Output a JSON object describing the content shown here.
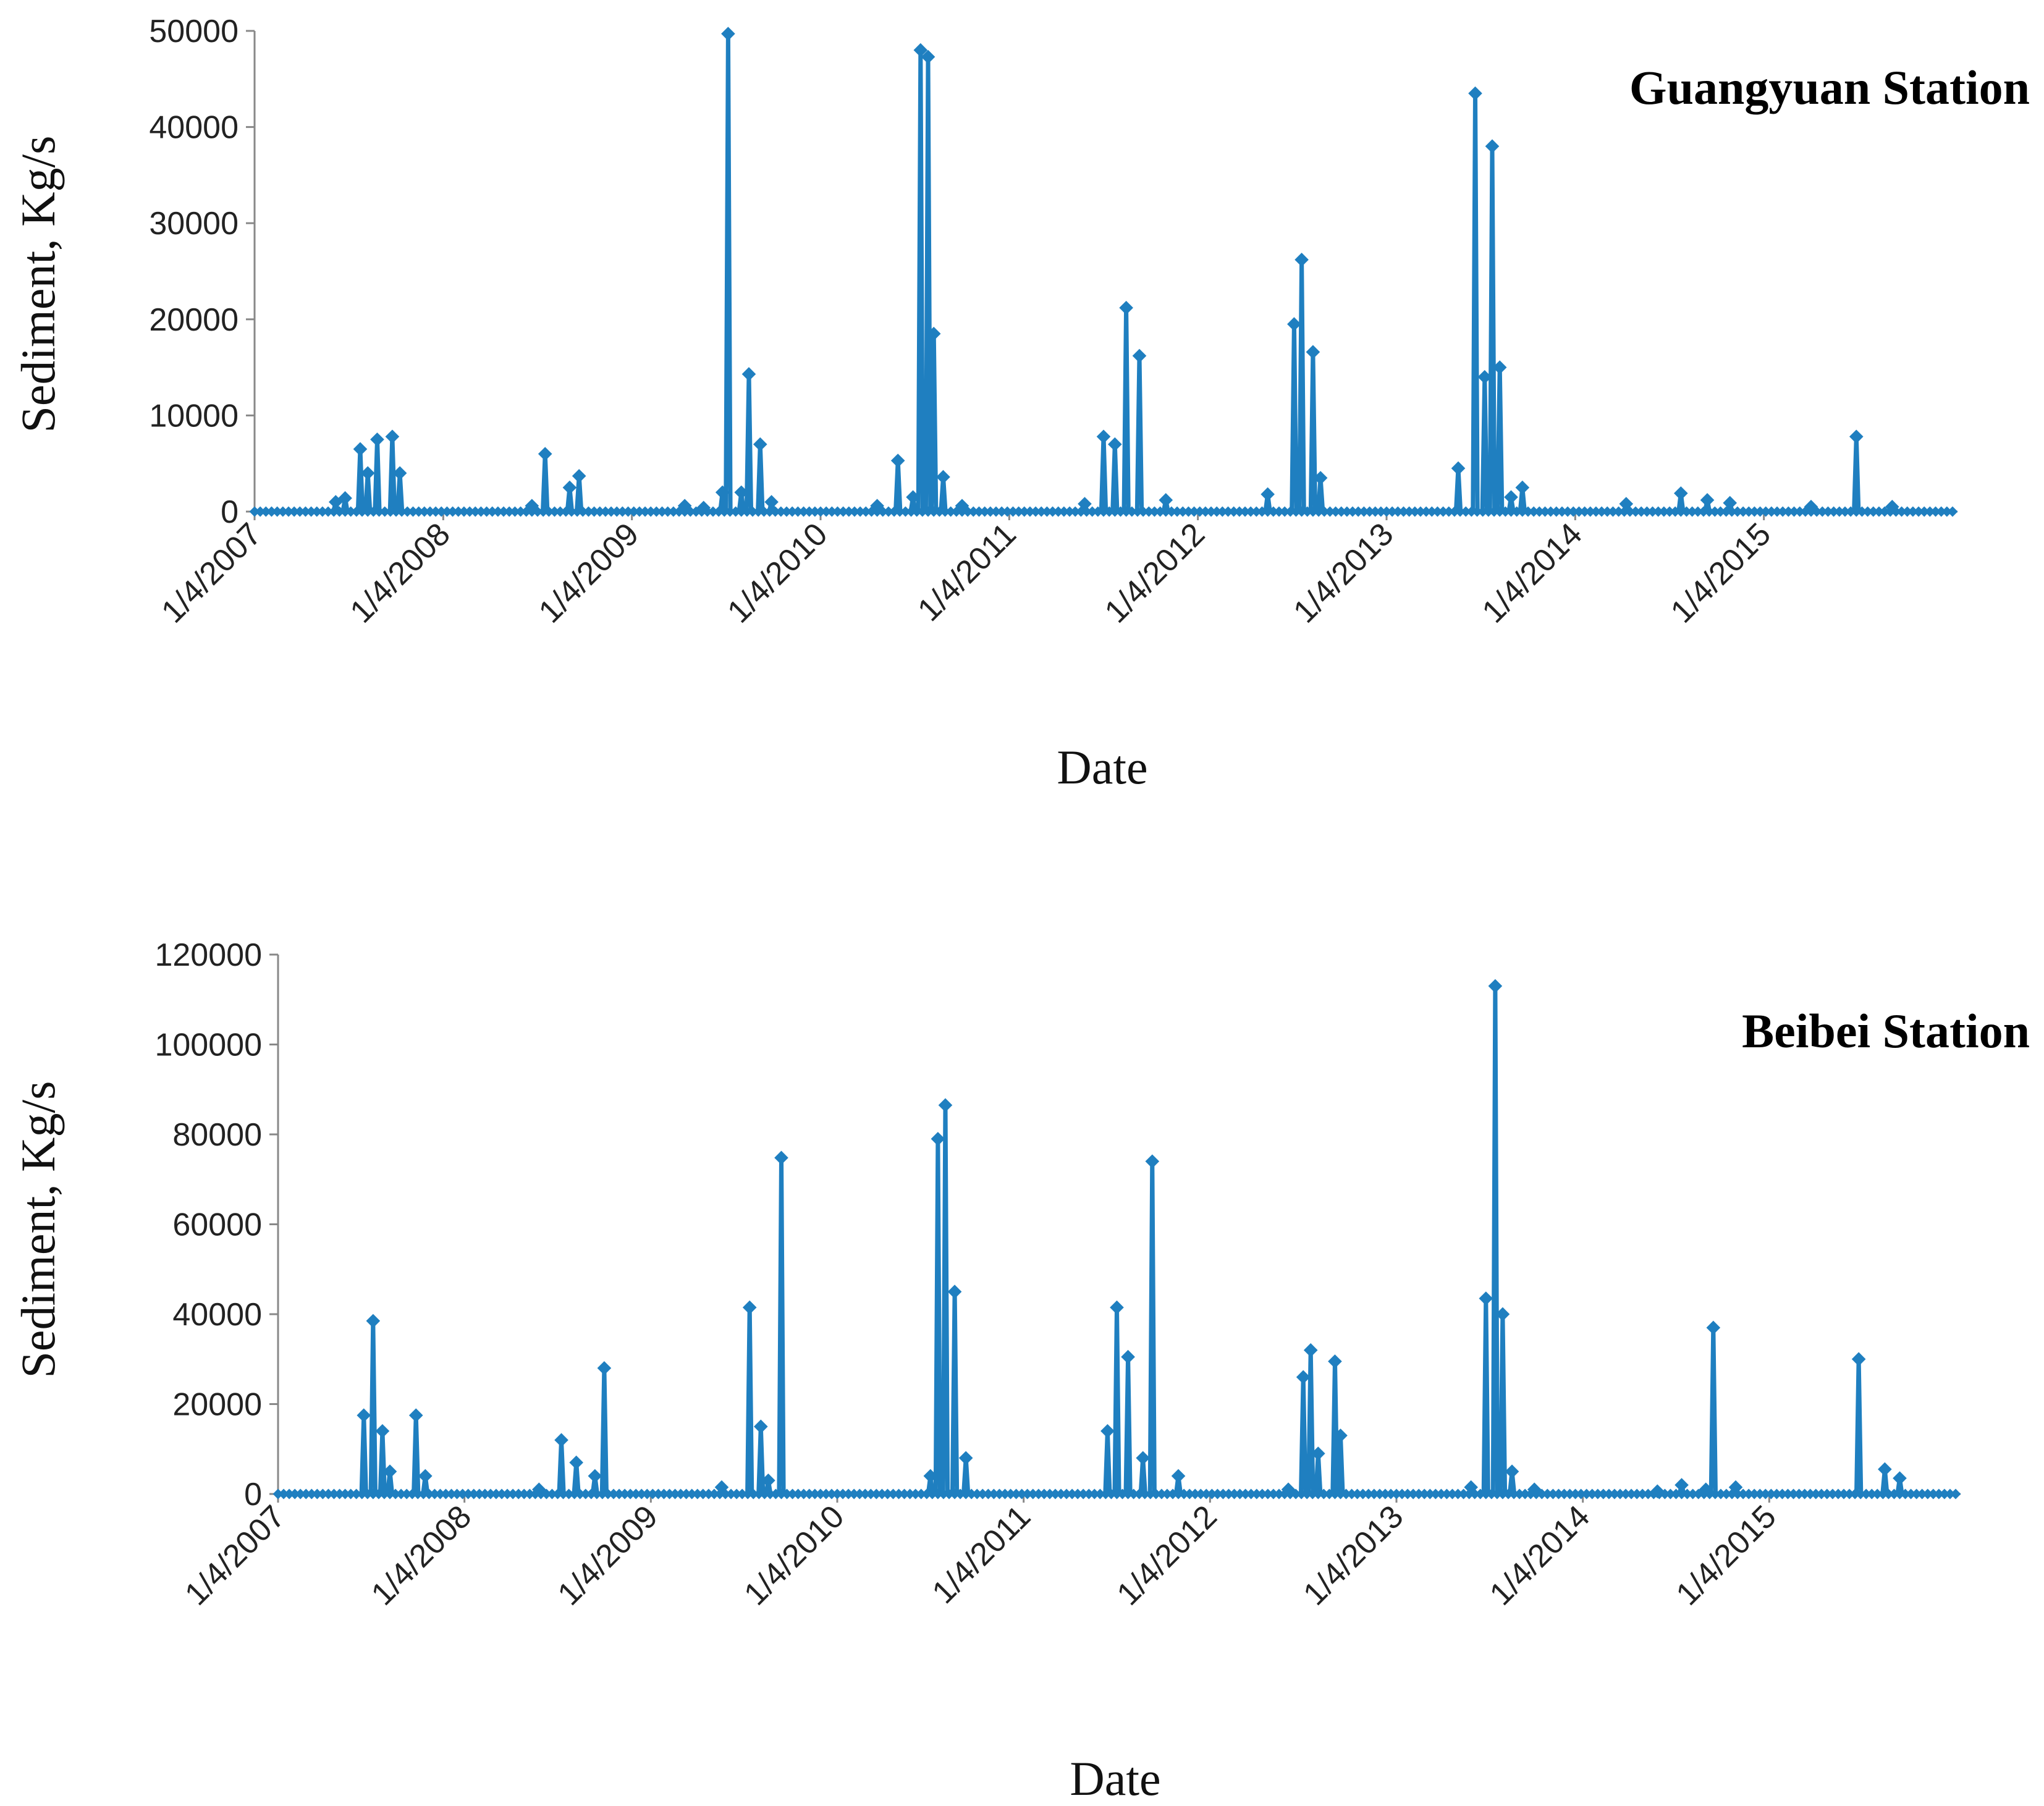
{
  "chart_data": [
    {
      "type": "line",
      "title": "Guangyuan Station",
      "xlabel": "Date",
      "ylabel": "Sediment, Kg/s",
      "ylim": [
        0,
        50000
      ],
      "yticks": [
        "0",
        "10000",
        "20000",
        "30000",
        "40000",
        "50000"
      ],
      "xlim": [
        2007.0,
        2016.0
      ],
      "xticks": [
        {
          "label": "1/4/2007",
          "value": 2007.0
        },
        {
          "label": "1/4/2008",
          "value": 2008.0
        },
        {
          "label": "1/4/2009",
          "value": 2009.0
        },
        {
          "label": "1/4/2010",
          "value": 2010.0
        },
        {
          "label": "1/4/2011",
          "value": 2011.0
        },
        {
          "label": "1/4/2012",
          "value": 2012.0
        },
        {
          "label": "1/4/2013",
          "value": 2013.0
        },
        {
          "label": "1/4/2014",
          "value": 2014.0
        },
        {
          "label": "1/4/2015",
          "value": 2015.0
        }
      ],
      "color": "#1f7fc0",
      "peaks": [
        {
          "x": 2007.43,
          "y": 1000
        },
        {
          "x": 2007.48,
          "y": 1400
        },
        {
          "x": 2007.56,
          "y": 6500
        },
        {
          "x": 2007.6,
          "y": 4000
        },
        {
          "x": 2007.65,
          "y": 7500
        },
        {
          "x": 2007.73,
          "y": 7800
        },
        {
          "x": 2007.77,
          "y": 4000
        },
        {
          "x": 2008.47,
          "y": 600
        },
        {
          "x": 2008.54,
          "y": 6000
        },
        {
          "x": 2008.67,
          "y": 2500
        },
        {
          "x": 2008.72,
          "y": 3700
        },
        {
          "x": 2009.28,
          "y": 600
        },
        {
          "x": 2009.38,
          "y": 400
        },
        {
          "x": 2009.48,
          "y": 2000
        },
        {
          "x": 2009.51,
          "y": 49700
        },
        {
          "x": 2009.58,
          "y": 2000
        },
        {
          "x": 2009.62,
          "y": 14300
        },
        {
          "x": 2009.68,
          "y": 7000
        },
        {
          "x": 2009.74,
          "y": 1000
        },
        {
          "x": 2010.3,
          "y": 600
        },
        {
          "x": 2010.41,
          "y": 5300
        },
        {
          "x": 2010.49,
          "y": 1500
        },
        {
          "x": 2010.53,
          "y": 48000
        },
        {
          "x": 2010.57,
          "y": 47300
        },
        {
          "x": 2010.6,
          "y": 18500
        },
        {
          "x": 2010.65,
          "y": 3600
        },
        {
          "x": 2010.75,
          "y": 600
        },
        {
          "x": 2011.4,
          "y": 800
        },
        {
          "x": 2011.5,
          "y": 7800
        },
        {
          "x": 2011.56,
          "y": 7000
        },
        {
          "x": 2011.62,
          "y": 21200
        },
        {
          "x": 2011.69,
          "y": 16200
        },
        {
          "x": 2011.83,
          "y": 1200
        },
        {
          "x": 2012.37,
          "y": 1800
        },
        {
          "x": 2012.51,
          "y": 19500
        },
        {
          "x": 2012.55,
          "y": 26200
        },
        {
          "x": 2012.61,
          "y": 16600
        },
        {
          "x": 2012.65,
          "y": 3500
        },
        {
          "x": 2013.38,
          "y": 4500
        },
        {
          "x": 2013.47,
          "y": 43500
        },
        {
          "x": 2013.52,
          "y": 14000
        },
        {
          "x": 2013.56,
          "y": 38000
        },
        {
          "x": 2013.6,
          "y": 15000
        },
        {
          "x": 2013.66,
          "y": 1500
        },
        {
          "x": 2013.72,
          "y": 2500
        },
        {
          "x": 2014.27,
          "y": 800
        },
        {
          "x": 2014.56,
          "y": 1900
        },
        {
          "x": 2014.7,
          "y": 1200
        },
        {
          "x": 2014.82,
          "y": 900
        },
        {
          "x": 2015.25,
          "y": 500
        },
        {
          "x": 2015.49,
          "y": 7800
        },
        {
          "x": 2015.68,
          "y": 500
        }
      ]
    },
    {
      "type": "line",
      "title": "Beibei Station",
      "xlabel": "Date",
      "ylabel": "Sediment, Kg/s",
      "ylim": [
        0,
        120000
      ],
      "yticks": [
        "0",
        "20000",
        "40000",
        "60000",
        "80000",
        "100000",
        "120000"
      ],
      "xlim": [
        2007.0,
        2016.0
      ],
      "xticks": [
        {
          "label": "1/4/2007",
          "value": 2007.0
        },
        {
          "label": "1/4/2008",
          "value": 2008.0
        },
        {
          "label": "1/4/2009",
          "value": 2009.0
        },
        {
          "label": "1/4/2010",
          "value": 2010.0
        },
        {
          "label": "1/4/2011",
          "value": 2011.0
        },
        {
          "label": "1/4/2012",
          "value": 2012.0
        },
        {
          "label": "1/4/2013",
          "value": 2013.0
        },
        {
          "label": "1/4/2014",
          "value": 2014.0
        },
        {
          "label": "1/4/2015",
          "value": 2015.0
        }
      ],
      "color": "#1f7fc0",
      "peaks": [
        {
          "x": 2007.46,
          "y": 17500
        },
        {
          "x": 2007.51,
          "y": 38500
        },
        {
          "x": 2007.56,
          "y": 14000
        },
        {
          "x": 2007.6,
          "y": 5000
        },
        {
          "x": 2007.74,
          "y": 17500
        },
        {
          "x": 2007.79,
          "y": 4000
        },
        {
          "x": 2008.4,
          "y": 1000
        },
        {
          "x": 2008.52,
          "y": 12000
        },
        {
          "x": 2008.6,
          "y": 7000
        },
        {
          "x": 2008.7,
          "y": 4000
        },
        {
          "x": 2008.75,
          "y": 28000
        },
        {
          "x": 2009.38,
          "y": 1500
        },
        {
          "x": 2009.53,
          "y": 41500
        },
        {
          "x": 2009.59,
          "y": 15000
        },
        {
          "x": 2009.63,
          "y": 3000
        },
        {
          "x": 2009.7,
          "y": 74800
        },
        {
          "x": 2010.5,
          "y": 4000
        },
        {
          "x": 2010.54,
          "y": 79000
        },
        {
          "x": 2010.58,
          "y": 86500
        },
        {
          "x": 2010.63,
          "y": 45000
        },
        {
          "x": 2010.69,
          "y": 8000
        },
        {
          "x": 2011.45,
          "y": 14000
        },
        {
          "x": 2011.5,
          "y": 41500
        },
        {
          "x": 2011.56,
          "y": 30500
        },
        {
          "x": 2011.64,
          "y": 8000
        },
        {
          "x": 2011.69,
          "y": 74000
        },
        {
          "x": 2011.83,
          "y": 4000
        },
        {
          "x": 2012.42,
          "y": 1000
        },
        {
          "x": 2012.5,
          "y": 26000
        },
        {
          "x": 2012.54,
          "y": 32000
        },
        {
          "x": 2012.58,
          "y": 9000
        },
        {
          "x": 2012.67,
          "y": 29500
        },
        {
          "x": 2012.7,
          "y": 13000
        },
        {
          "x": 2013.4,
          "y": 1500
        },
        {
          "x": 2013.48,
          "y": 43500
        },
        {
          "x": 2013.53,
          "y": 113000
        },
        {
          "x": 2013.57,
          "y": 40000
        },
        {
          "x": 2013.62,
          "y": 5000
        },
        {
          "x": 2013.74,
          "y": 1000
        },
        {
          "x": 2014.4,
          "y": 600
        },
        {
          "x": 2014.53,
          "y": 2000
        },
        {
          "x": 2014.66,
          "y": 1000
        },
        {
          "x": 2014.7,
          "y": 37000
        },
        {
          "x": 2014.82,
          "y": 1500
        },
        {
          "x": 2015.48,
          "y": 30000
        },
        {
          "x": 2015.62,
          "y": 5500
        },
        {
          "x": 2015.7,
          "y": 3500
        }
      ]
    }
  ]
}
